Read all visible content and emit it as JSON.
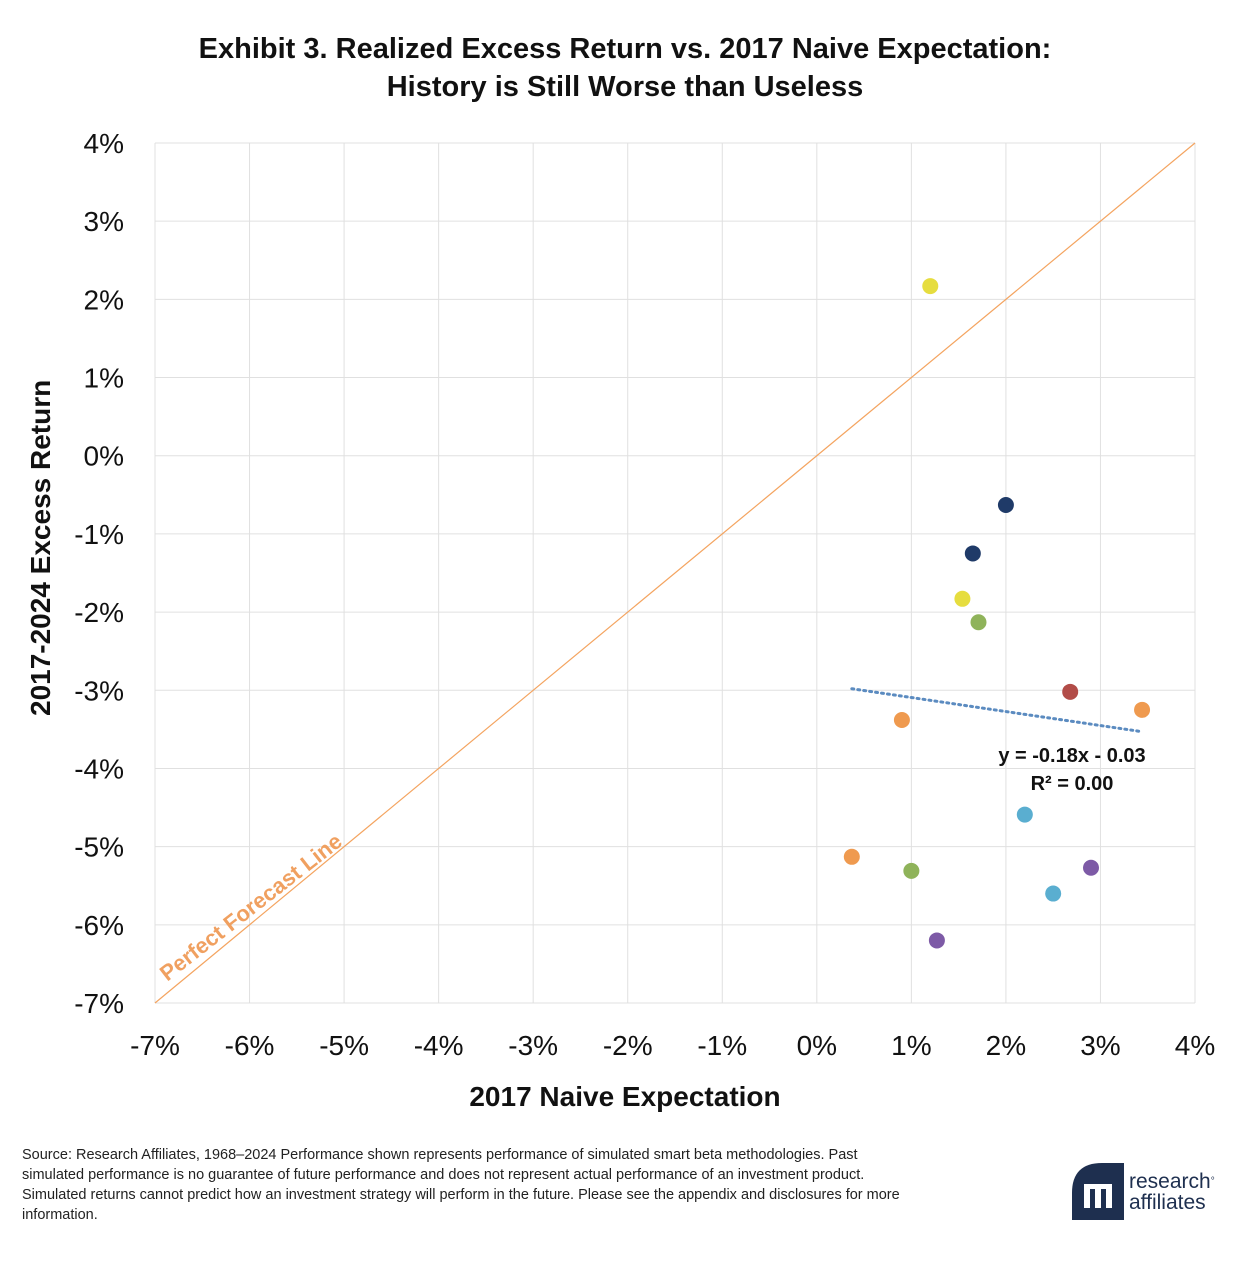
{
  "title_line1": "Exhibit 3. Realized Excess Return vs. 2017 Naive Expectation:",
  "title_line2": "History is Still Worse than Useless",
  "source_text": "Source: Research Affiliates, 1968–2024 Performance shown represents performance of simulated smart beta methodologies. Past simulated performance is no guarantee of future performance and does not represent actual performance of an investment product. Simulated returns cannot predict how an investment strategy will perform in the future. Please see the appendix and disclosures for more information.",
  "logo": {
    "line1": "research",
    "line2": "affiliates",
    "mark": "logo-mark"
  },
  "colors": {
    "perfect_line": "#f4a460",
    "perfect_label": "#f0a060",
    "trendline": "#5b8bc0",
    "grid": "#e0e0e0"
  },
  "chart_data": {
    "type": "scatter",
    "xlabel": "2017 Naive Expectation",
    "ylabel": "2017-2024 Excess Return",
    "xlim": [
      -0.07,
      0.04
    ],
    "ylim": [
      -0.07,
      0.04
    ],
    "x_ticks": [
      "-7%",
      "-6%",
      "-5%",
      "-4%",
      "-3%",
      "-2%",
      "-1%",
      "0%",
      "1%",
      "2%",
      "3%",
      "4%"
    ],
    "y_ticks": [
      "4%",
      "3%",
      "2%",
      "1%",
      "0%",
      "-1%",
      "-2%",
      "-3%",
      "-4%",
      "-5%",
      "-6%",
      "-7%"
    ],
    "grid": true,
    "points": [
      {
        "x": 0.012,
        "y": 0.0217,
        "color": "#e6dd3f"
      },
      {
        "x": 0.02,
        "y": -0.0063,
        "color": "#1f3a68"
      },
      {
        "x": 0.0165,
        "y": -0.0125,
        "color": "#1f3a68"
      },
      {
        "x": 0.0154,
        "y": -0.0183,
        "color": "#e6dd3f"
      },
      {
        "x": 0.0171,
        "y": -0.0213,
        "color": "#8fb35a"
      },
      {
        "x": 0.0268,
        "y": -0.0302,
        "color": "#b24c48"
      },
      {
        "x": 0.0344,
        "y": -0.0325,
        "color": "#ef9a4f"
      },
      {
        "x": 0.009,
        "y": -0.0338,
        "color": "#ef9a4f"
      },
      {
        "x": 0.022,
        "y": -0.0459,
        "color": "#5aaed0"
      },
      {
        "x": 0.0037,
        "y": -0.0513,
        "color": "#ef9a4f"
      },
      {
        "x": 0.01,
        "y": -0.0531,
        "color": "#8fb35a"
      },
      {
        "x": 0.029,
        "y": -0.0527,
        "color": "#7d5aa6"
      },
      {
        "x": 0.025,
        "y": -0.056,
        "color": "#5aaed0"
      },
      {
        "x": 0.0127,
        "y": -0.062,
        "color": "#7d5aa6"
      }
    ],
    "reference_line": {
      "label": "Perfect Forecast Line",
      "from": [
        -0.07,
        -0.07
      ],
      "to": [
        0.04,
        0.04
      ]
    },
    "trendline": {
      "from": [
        0.0037,
        -0.0298
      ],
      "to": [
        0.0344,
        -0.0353
      ],
      "equation": "y = -0.18x - 0.03",
      "r2": "R² = 0.00"
    }
  }
}
